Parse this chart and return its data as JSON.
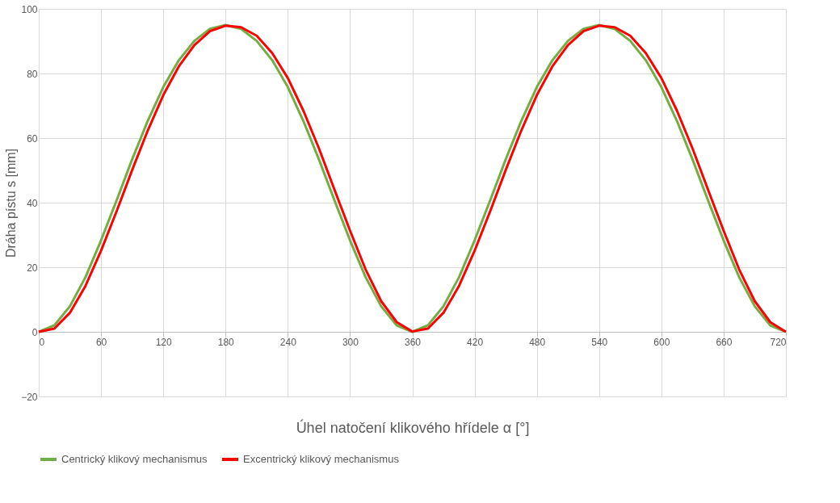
{
  "chart_data": {
    "type": "line",
    "xlabel": "Úhel natočení klikového hřídele α [°]",
    "ylabel": "Dráha pístu s [mm]",
    "x": [
      0,
      15,
      30,
      45,
      60,
      75,
      90,
      105,
      120,
      135,
      150,
      165,
      180,
      195,
      210,
      225,
      240,
      255,
      270,
      285,
      300,
      315,
      330,
      345,
      360,
      375,
      390,
      405,
      420,
      435,
      450,
      465,
      480,
      495,
      510,
      525,
      540,
      555,
      570,
      585,
      600,
      615,
      630,
      645,
      660,
      675,
      690,
      705,
      720
    ],
    "series": [
      {
        "name": "Centrický klikový mechanismus",
        "color": "#70ad47",
        "values": [
          0,
          2.0,
          7.9,
          16.9,
          28.3,
          40.7,
          53.4,
          65.3,
          75.8,
          84.1,
          90.1,
          93.8,
          95,
          93.8,
          90.1,
          84.1,
          75.8,
          65.3,
          53.4,
          40.7,
          28.3,
          16.9,
          7.9,
          2.0,
          0,
          2.0,
          7.9,
          16.9,
          28.3,
          40.7,
          53.4,
          65.3,
          75.8,
          84.1,
          90.1,
          93.8,
          95,
          93.8,
          90.1,
          84.1,
          75.8,
          65.3,
          53.4,
          40.7,
          28.3,
          16.9,
          7.9,
          2.0,
          0
        ]
      },
      {
        "name": "Excentrický klikový mechanismus",
        "color": "#ff0000",
        "values": [
          0,
          1.0,
          5.9,
          14.2,
          25.1,
          37.3,
          50.1,
          62.3,
          73.3,
          82.2,
          88.8,
          93.1,
          94.8,
          94.3,
          91.7,
          86.3,
          78.6,
          68.5,
          56.8,
          44.0,
          31.3,
          19.3,
          9.5,
          3.0,
          0.1,
          1.0,
          5.9,
          14.2,
          25.1,
          37.3,
          50.1,
          62.3,
          73.3,
          82.2,
          88.8,
          93.1,
          94.8,
          94.3,
          91.7,
          86.3,
          78.6,
          68.5,
          56.8,
          44.0,
          31.3,
          19.3,
          9.5,
          3.0,
          0
        ]
      }
    ],
    "xlim": [
      0,
      720
    ],
    "xticks": [
      0,
      60,
      120,
      180,
      240,
      300,
      360,
      420,
      480,
      540,
      600,
      660,
      720
    ],
    "ylim": [
      -20,
      100
    ],
    "yticks": [
      -20,
      0,
      20,
      40,
      60,
      80,
      100
    ],
    "grid": true,
    "legend": "bottom",
    "marker": "none",
    "line_style": "solid"
  }
}
